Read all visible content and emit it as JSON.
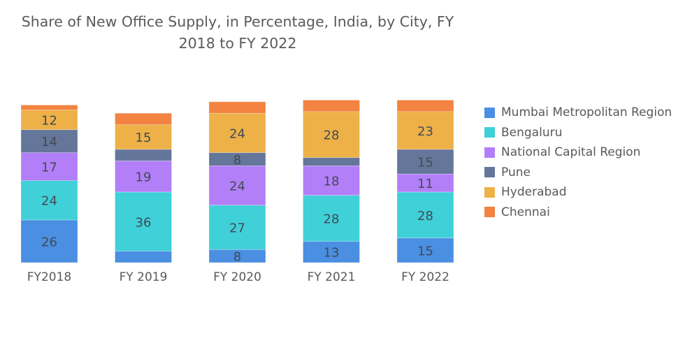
{
  "chart_data": {
    "type": "bar",
    "stacked": true,
    "title": "Share of New Office Supply, in Percentage, India, by City, FY 2018 to FY 2022",
    "title_lines": [
      "Share of New Office Supply, in Percentage, India, by City, FY",
      "2018 to FY 2022"
    ],
    "xlabel": "",
    "ylabel": "",
    "ylim": [
      0,
      100
    ],
    "grid": false,
    "legend_position": "right",
    "categories": [
      "FY2018",
      "FY 2019",
      "FY 2020",
      "FY 2021",
      "FY 2022"
    ],
    "series": [
      {
        "name": "Mumbai Metropolitan Region",
        "color": "#4A8FE2",
        "values": [
          26,
          7,
          8,
          13,
          15
        ]
      },
      {
        "name": "Bengaluru",
        "color": "#3FD0D8",
        "values": [
          24,
          36,
          27,
          28,
          28
        ]
      },
      {
        "name": "National Capital Region",
        "color": "#B27FF8",
        "values": [
          17,
          19,
          24,
          18,
          11
        ]
      },
      {
        "name": "Pune",
        "color": "#64769A",
        "values": [
          14,
          7,
          8,
          5,
          15
        ]
      },
      {
        "name": "Hyderabad",
        "color": "#EDB148",
        "values": [
          12,
          15,
          24,
          28,
          23
        ]
      },
      {
        "name": "Chennai",
        "color": "#F28340",
        "values": [
          3,
          7,
          7,
          7,
          7
        ]
      }
    ],
    "data_labels_min_value": 8
  }
}
